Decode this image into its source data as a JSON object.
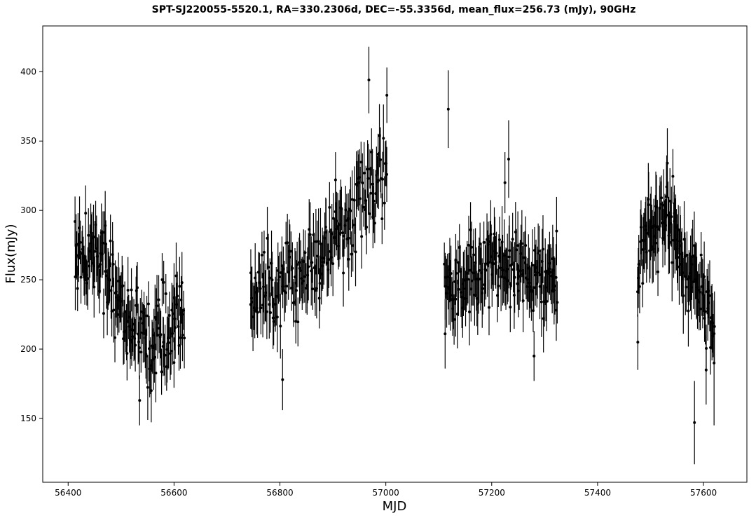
{
  "chart_data": {
    "type": "scatter",
    "title": "SPT-SJ220055-5520.1, RA=330.2306d, DEC=-55.3356d, mean_flux=256.73 (mJy), 90GHz",
    "xlabel": "MJD",
    "ylabel": "Flux(mJy)",
    "xlim": [
      56352,
      57682
    ],
    "ylim": [
      104,
      433
    ],
    "xticks": [
      56400,
      56600,
      56800,
      57000,
      57200,
      57400,
      57600
    ],
    "yticks": [
      150,
      200,
      250,
      300,
      350,
      400
    ],
    "grid": false,
    "legend": "none",
    "marker_color": "#000000",
    "errorbars": true,
    "seed_points": {
      "x": [
        56413,
        56433,
        56448,
        56470,
        56478,
        56498,
        56512,
        56520,
        56535,
        56548,
        56562,
        56580,
        56600,
        56615,
        56745,
        56770,
        56805,
        56830,
        56880,
        56905,
        56930,
        56968,
        57002,
        57112,
        57118,
        57132,
        57160,
        57195,
        57225,
        57232,
        57280,
        57322,
        57476,
        57500,
        57510,
        57530,
        57545,
        57560,
        57583,
        57605,
        57620
      ],
      "y": [
        292,
        298,
        260,
        289,
        250,
        235,
        220,
        205,
        163,
        195,
        210,
        205,
        237,
        248,
        255,
        238,
        178,
        220,
        260,
        322,
        280,
        394,
        383,
        211,
        373,
        236,
        286,
        230,
        320,
        337,
        195,
        228,
        205,
        288,
        303,
        310,
        298,
        255,
        147,
        185,
        190
      ],
      "err": [
        18,
        20,
        16,
        25,
        17,
        16,
        18,
        17,
        18,
        20,
        19,
        18,
        25,
        22,
        17,
        20,
        22,
        16,
        18,
        20,
        22,
        24,
        20,
        25,
        28,
        27,
        20,
        20,
        22,
        28,
        18,
        22,
        20,
        24,
        25,
        25,
        20,
        22,
        30,
        25,
        45
      ]
    },
    "segments": [
      {
        "x_start": 56413,
        "x_end": 56620,
        "trend": [
          [
            56413,
            268
          ],
          [
            56460,
            270
          ],
          [
            56480,
            250
          ],
          [
            56510,
            225
          ],
          [
            56540,
            205
          ],
          [
            56575,
            210
          ],
          [
            56620,
            225
          ]
        ],
        "count": 150,
        "scatter": 22,
        "err": [
          14,
          24
        ]
      },
      {
        "x_start": 56744,
        "x_end": 57003,
        "trend": [
          [
            56744,
            240
          ],
          [
            56800,
            245
          ],
          [
            56860,
            260
          ],
          [
            56920,
            285
          ],
          [
            56960,
            310
          ],
          [
            57003,
            320
          ]
        ],
        "count": 170,
        "scatter": 20,
        "err": [
          14,
          26
        ]
      },
      {
        "x_start": 57110,
        "x_end": 57325,
        "trend": [
          [
            57110,
            245
          ],
          [
            57160,
            250
          ],
          [
            57200,
            262
          ],
          [
            57250,
            255
          ],
          [
            57325,
            250
          ]
        ],
        "count": 150,
        "scatter": 20,
        "err": [
          15,
          26
        ]
      },
      {
        "x_start": 57475,
        "x_end": 57622,
        "trend": [
          [
            57475,
            262
          ],
          [
            57500,
            282
          ],
          [
            57530,
            295
          ],
          [
            57560,
            262
          ],
          [
            57590,
            240
          ],
          [
            57622,
            225
          ]
        ],
        "count": 110,
        "scatter": 22,
        "err": [
          15,
          28
        ]
      }
    ]
  }
}
